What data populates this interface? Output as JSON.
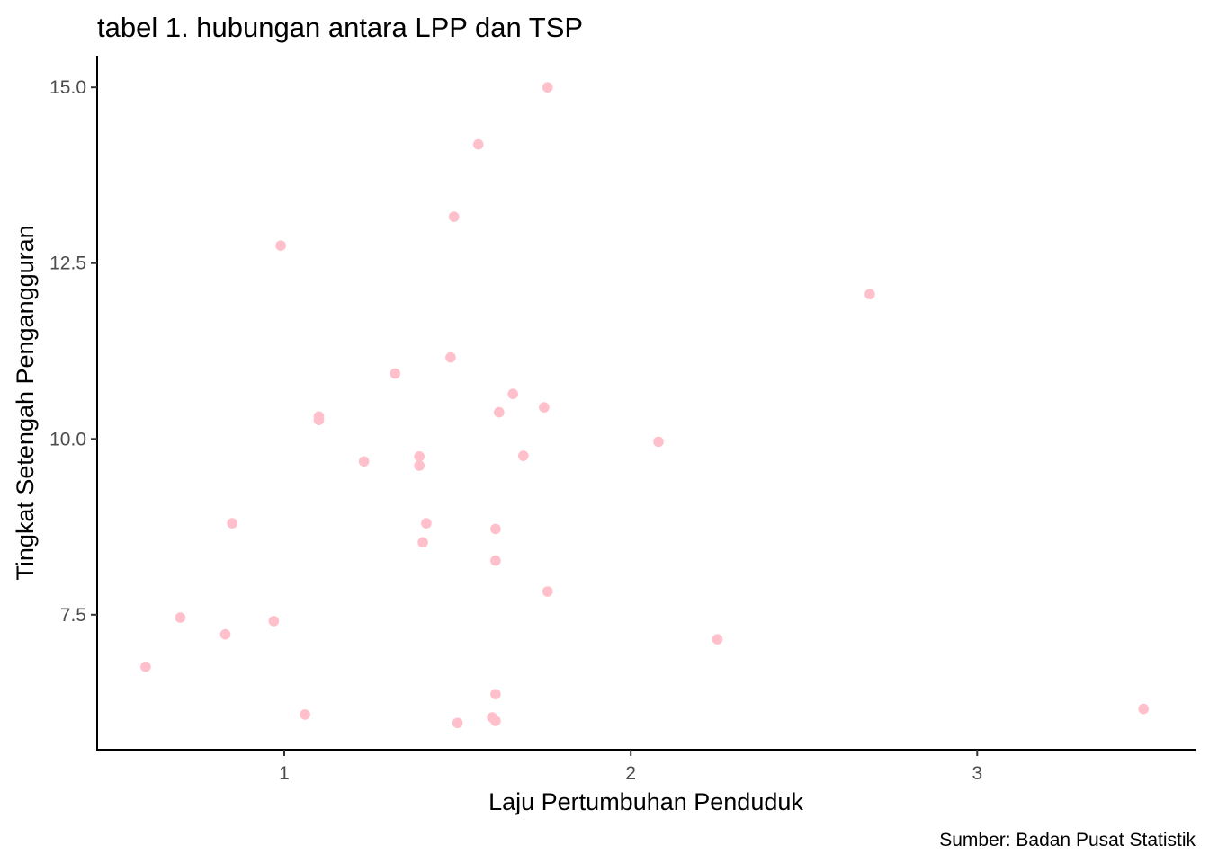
{
  "chart_data": {
    "type": "scatter",
    "title": "tabel 1. hubungan antara LPP dan TSP",
    "xlabel": "Laju Pertumbuhan Penduduk",
    "ylabel": "Tingkat Setengah Pengangguran",
    "caption": "Sumber: Badan Pusat Statistik",
    "xlim": [
      0.46,
      3.63
    ],
    "ylim": [
      5.58,
      15.45
    ],
    "x_ticks": [
      1,
      2,
      3
    ],
    "x_tick_labels": [
      "1",
      "2",
      "3"
    ],
    "y_ticks": [
      7.5,
      10.0,
      12.5,
      15.0
    ],
    "y_tick_labels": [
      "7.5",
      "10.0",
      "12.5",
      "15.0"
    ],
    "grid": false,
    "legend": "none",
    "point_color": "#FFC0CB",
    "points": [
      {
        "x": 1.76,
        "y": 15.0
      },
      {
        "x": 1.56,
        "y": 14.19
      },
      {
        "x": 1.49,
        "y": 13.16
      },
      {
        "x": 0.99,
        "y": 12.75
      },
      {
        "x": 2.69,
        "y": 12.06
      },
      {
        "x": 1.48,
        "y": 11.16
      },
      {
        "x": 1.32,
        "y": 10.93
      },
      {
        "x": 1.66,
        "y": 10.64
      },
      {
        "x": 1.75,
        "y": 10.45
      },
      {
        "x": 1.62,
        "y": 10.38
      },
      {
        "x": 1.1,
        "y": 10.32
      },
      {
        "x": 1.1,
        "y": 10.27
      },
      {
        "x": 2.08,
        "y": 9.96
      },
      {
        "x": 1.69,
        "y": 9.76
      },
      {
        "x": 1.39,
        "y": 9.75
      },
      {
        "x": 1.23,
        "y": 9.68
      },
      {
        "x": 1.39,
        "y": 9.62
      },
      {
        "x": 0.85,
        "y": 8.8
      },
      {
        "x": 1.41,
        "y": 8.8
      },
      {
        "x": 1.61,
        "y": 8.72
      },
      {
        "x": 1.4,
        "y": 8.53
      },
      {
        "x": 1.61,
        "y": 8.27
      },
      {
        "x": 1.76,
        "y": 7.83
      },
      {
        "x": 0.7,
        "y": 7.46
      },
      {
        "x": 0.97,
        "y": 7.41
      },
      {
        "x": 0.83,
        "y": 7.22
      },
      {
        "x": 2.25,
        "y": 7.15
      },
      {
        "x": 0.6,
        "y": 6.76
      },
      {
        "x": 1.61,
        "y": 6.37
      },
      {
        "x": 3.48,
        "y": 6.16
      },
      {
        "x": 1.06,
        "y": 6.08
      },
      {
        "x": 1.6,
        "y": 6.04
      },
      {
        "x": 1.61,
        "y": 5.99
      },
      {
        "x": 1.5,
        "y": 5.96
      }
    ]
  }
}
